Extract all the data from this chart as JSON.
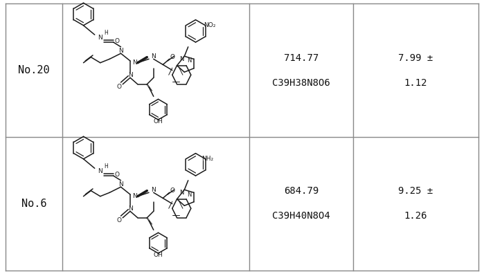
{
  "figsize": [
    6.99,
    3.96
  ],
  "dpi": 100,
  "bg_color": "#ffffff",
  "rows": [
    {
      "label": "No.20",
      "formula_line1": "714.77",
      "formula_line2": "C39H38N8O6",
      "value_line1": "7.99 ±",
      "value_line2": "1.12"
    },
    {
      "label": "No.6",
      "formula_line1": "684.79",
      "formula_line2": "C39H40N8O4",
      "value_line1": "9.25 ±",
      "value_line2": "1.26"
    }
  ],
  "border_color": "#888888",
  "text_color": "#111111",
  "font_size": 10,
  "label_font_size": 11
}
